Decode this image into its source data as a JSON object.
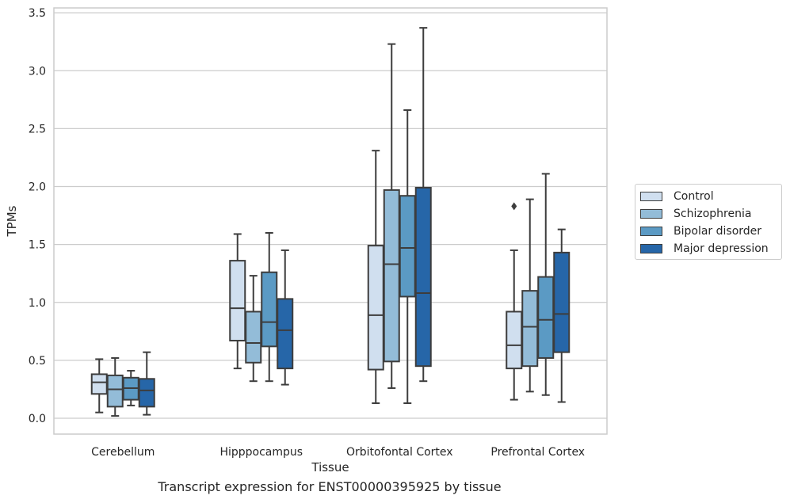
{
  "chart_data": {
    "type": "box",
    "caption": "Transcript expression for ENST00000395925 by tissue",
    "xlabel": "Tissue",
    "ylabel": "TPMs",
    "ylim": [
      -0.14,
      3.55
    ],
    "yticks": [
      "0.0",
      "0.5",
      "1.0",
      "1.5",
      "2.0",
      "2.5",
      "3.0",
      "3.5"
    ],
    "categories": [
      "Cerebellum",
      "Hipppocampus",
      "Orbitofontal Cortex",
      "Prefrontal Cortex"
    ],
    "grid": "horizontal",
    "legend_position": "right",
    "series": [
      {
        "name": "Control",
        "color": "#d0dfef",
        "boxes": [
          {
            "whislo": 0.05,
            "q1": 0.21,
            "med": 0.31,
            "q3": 0.38,
            "whishi": 0.51,
            "fliers": []
          },
          {
            "whislo": 0.43,
            "q1": 0.67,
            "med": 0.95,
            "q3": 1.36,
            "whishi": 1.59,
            "fliers": []
          },
          {
            "whislo": 0.13,
            "q1": 0.42,
            "med": 0.89,
            "q3": 1.49,
            "whishi": 2.31,
            "fliers": []
          },
          {
            "whislo": 0.16,
            "q1": 0.43,
            "med": 0.63,
            "q3": 0.92,
            "whishi": 1.45,
            "fliers": [
              1.83
            ]
          }
        ]
      },
      {
        "name": "Schizophrenia",
        "color": "#93bcd8",
        "boxes": [
          {
            "whislo": 0.02,
            "q1": 0.1,
            "med": 0.25,
            "q3": 0.37,
            "whishi": 0.52,
            "fliers": []
          },
          {
            "whislo": 0.32,
            "q1": 0.48,
            "med": 0.65,
            "q3": 0.92,
            "whishi": 1.23,
            "fliers": []
          },
          {
            "whislo": 0.26,
            "q1": 0.49,
            "med": 1.33,
            "q3": 1.97,
            "whishi": 3.23,
            "fliers": []
          },
          {
            "whislo": 0.23,
            "q1": 0.45,
            "med": 0.79,
            "q3": 1.1,
            "whishi": 1.89,
            "fliers": []
          }
        ]
      },
      {
        "name": "Bipolar disorder",
        "color": "#5b9ac4",
        "boxes": [
          {
            "whislo": 0.11,
            "q1": 0.16,
            "med": 0.26,
            "q3": 0.35,
            "whishi": 0.41,
            "fliers": []
          },
          {
            "whislo": 0.32,
            "q1": 0.62,
            "med": 0.83,
            "q3": 1.26,
            "whishi": 1.6,
            "fliers": []
          },
          {
            "whislo": 0.13,
            "q1": 1.05,
            "med": 1.47,
            "q3": 1.92,
            "whishi": 2.66,
            "fliers": []
          },
          {
            "whislo": 0.2,
            "q1": 0.52,
            "med": 0.85,
            "q3": 1.22,
            "whishi": 2.11,
            "fliers": []
          }
        ]
      },
      {
        "name": "Major depression",
        "color": "#2666a8",
        "boxes": [
          {
            "whislo": 0.03,
            "q1": 0.1,
            "med": 0.24,
            "q3": 0.34,
            "whishi": 0.57,
            "fliers": []
          },
          {
            "whislo": 0.29,
            "q1": 0.43,
            "med": 0.76,
            "q3": 1.03,
            "whishi": 1.45,
            "fliers": []
          },
          {
            "whislo": 0.32,
            "q1": 0.45,
            "med": 1.08,
            "q3": 1.99,
            "whishi": 3.37,
            "fliers": []
          },
          {
            "whislo": 0.14,
            "q1": 0.57,
            "med": 0.9,
            "q3": 1.43,
            "whishi": 1.63,
            "fliers": []
          }
        ]
      }
    ]
  }
}
